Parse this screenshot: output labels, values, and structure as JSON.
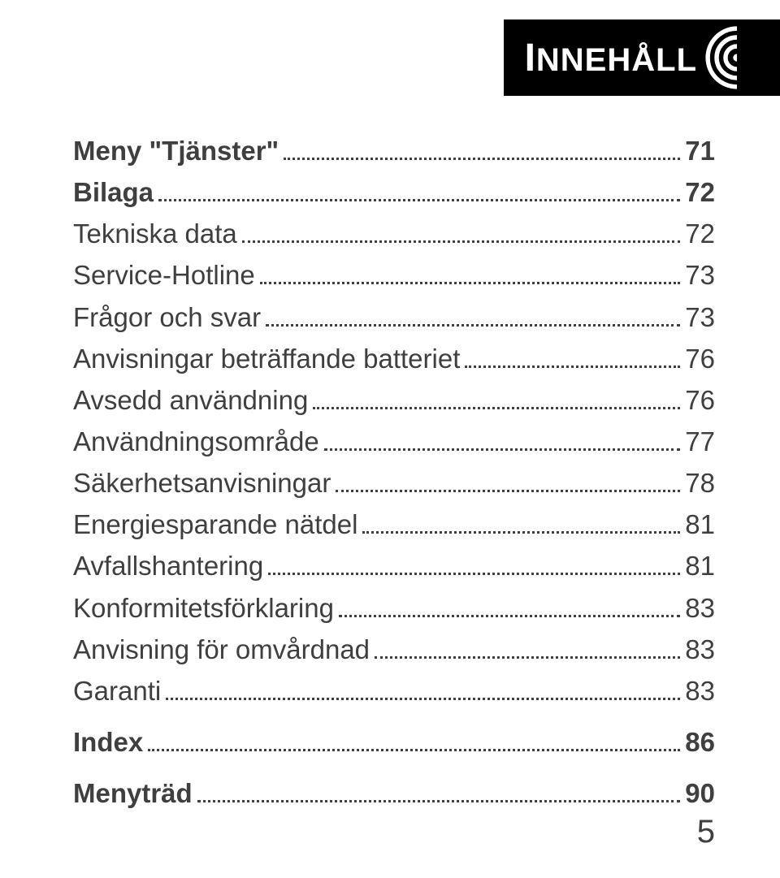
{
  "header": {
    "title_leading_cap": "I",
    "title_rest": "NNEHÅLL"
  },
  "toc": {
    "leader_color": "#3f3f3f",
    "text_color": "#3f3f3f",
    "font_size_pt": 25,
    "entries": [
      {
        "label": "Meny \"Tjänster\"",
        "page": "71",
        "bold": true,
        "gap_after": false
      },
      {
        "label": "Bilaga",
        "page": "72",
        "bold": true,
        "gap_after": false
      },
      {
        "label": "Tekniska data",
        "page": "72",
        "bold": false,
        "gap_after": false
      },
      {
        "label": "Service-Hotline",
        "page": "73",
        "bold": false,
        "gap_after": false
      },
      {
        "label": "Frågor och svar",
        "page": "73",
        "bold": false,
        "gap_after": false
      },
      {
        "label": "Anvisningar beträffande batteriet",
        "page": "76",
        "bold": false,
        "gap_after": false
      },
      {
        "label": "Avsedd användning",
        "page": "76",
        "bold": false,
        "gap_after": false
      },
      {
        "label": "Användningsområde",
        "page": "77",
        "bold": false,
        "gap_after": false
      },
      {
        "label": "Säkerhetsanvisningar",
        "page": "78",
        "bold": false,
        "gap_after": false
      },
      {
        "label": "Energiesparande nätdel",
        "page": "81",
        "bold": false,
        "gap_after": false
      },
      {
        "label": "Avfallshantering",
        "page": "81",
        "bold": false,
        "gap_after": false
      },
      {
        "label": "Konformitetsförklaring",
        "page": "83",
        "bold": false,
        "gap_after": false
      },
      {
        "label": "Anvisning för omvårdnad",
        "page": "83",
        "bold": false,
        "gap_after": false
      },
      {
        "label": "Garanti",
        "page": "83",
        "bold": false,
        "gap_after": true
      },
      {
        "label": "Index",
        "page": "86",
        "bold": true,
        "gap_after": true
      },
      {
        "label": "Menyträd",
        "page": "90",
        "bold": true,
        "gap_after": false
      }
    ]
  },
  "page_number": "5",
  "colors": {
    "background": "#ffffff",
    "banner_bg": "#000000",
    "banner_text": "#ffffff",
    "body_text": "#3f3f3f"
  }
}
